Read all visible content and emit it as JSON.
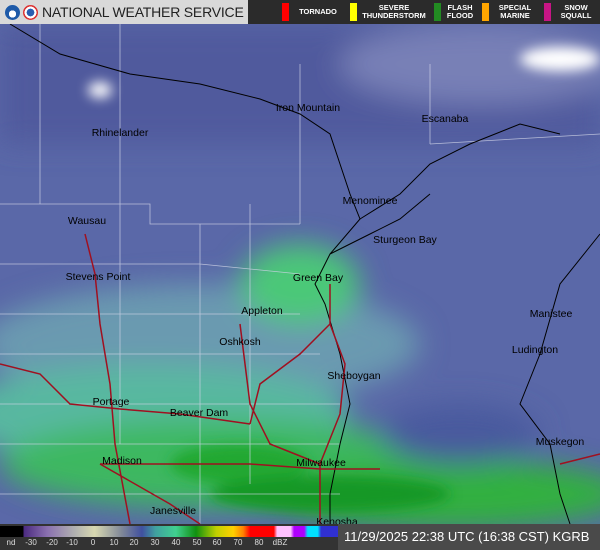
{
  "header": {
    "title": "NATIONAL WEATHER SERVICE",
    "logos": [
      "noaa-logo",
      "nws-logo"
    ]
  },
  "warnings": [
    {
      "label": "TORNADO",
      "color": "#ff0000"
    },
    {
      "label": "SEVERE THUNDERSTORM",
      "color": "#ffff00"
    },
    {
      "label": "FLASH FLOOD",
      "color": "#228b22"
    },
    {
      "label": "SPECIAL MARINE",
      "color": "#ffa500"
    },
    {
      "label": "SNOW SQUALL",
      "color": "#c71585"
    }
  ],
  "cities": [
    {
      "name": "Iron Mountain"
    },
    {
      "name": "Rhinelander"
    },
    {
      "name": "Escanaba"
    },
    {
      "name": "Menominee"
    },
    {
      "name": "Sturgeon Bay"
    },
    {
      "name": "Wausau"
    },
    {
      "name": "Stevens Point"
    },
    {
      "name": "Green Bay"
    },
    {
      "name": "Appleton"
    },
    {
      "name": "Manistee"
    },
    {
      "name": "Oshkosh"
    },
    {
      "name": "Ludington"
    },
    {
      "name": "Sheboygan"
    },
    {
      "name": "Portage"
    },
    {
      "name": "Beaver Dam"
    },
    {
      "name": "Muskegon"
    },
    {
      "name": "Madison"
    },
    {
      "name": "Milwaukee"
    },
    {
      "name": "Janesville"
    },
    {
      "name": "Kenosha"
    }
  ],
  "legend": {
    "labels": [
      "nd",
      "-30",
      "-20",
      "-10",
      "0",
      "10",
      "20",
      "30",
      "40",
      "50",
      "60",
      "70",
      "80",
      "dBZ"
    ]
  },
  "timestamp": "11/29/2025 22:38 UTC (16:38 CST) KGRB"
}
